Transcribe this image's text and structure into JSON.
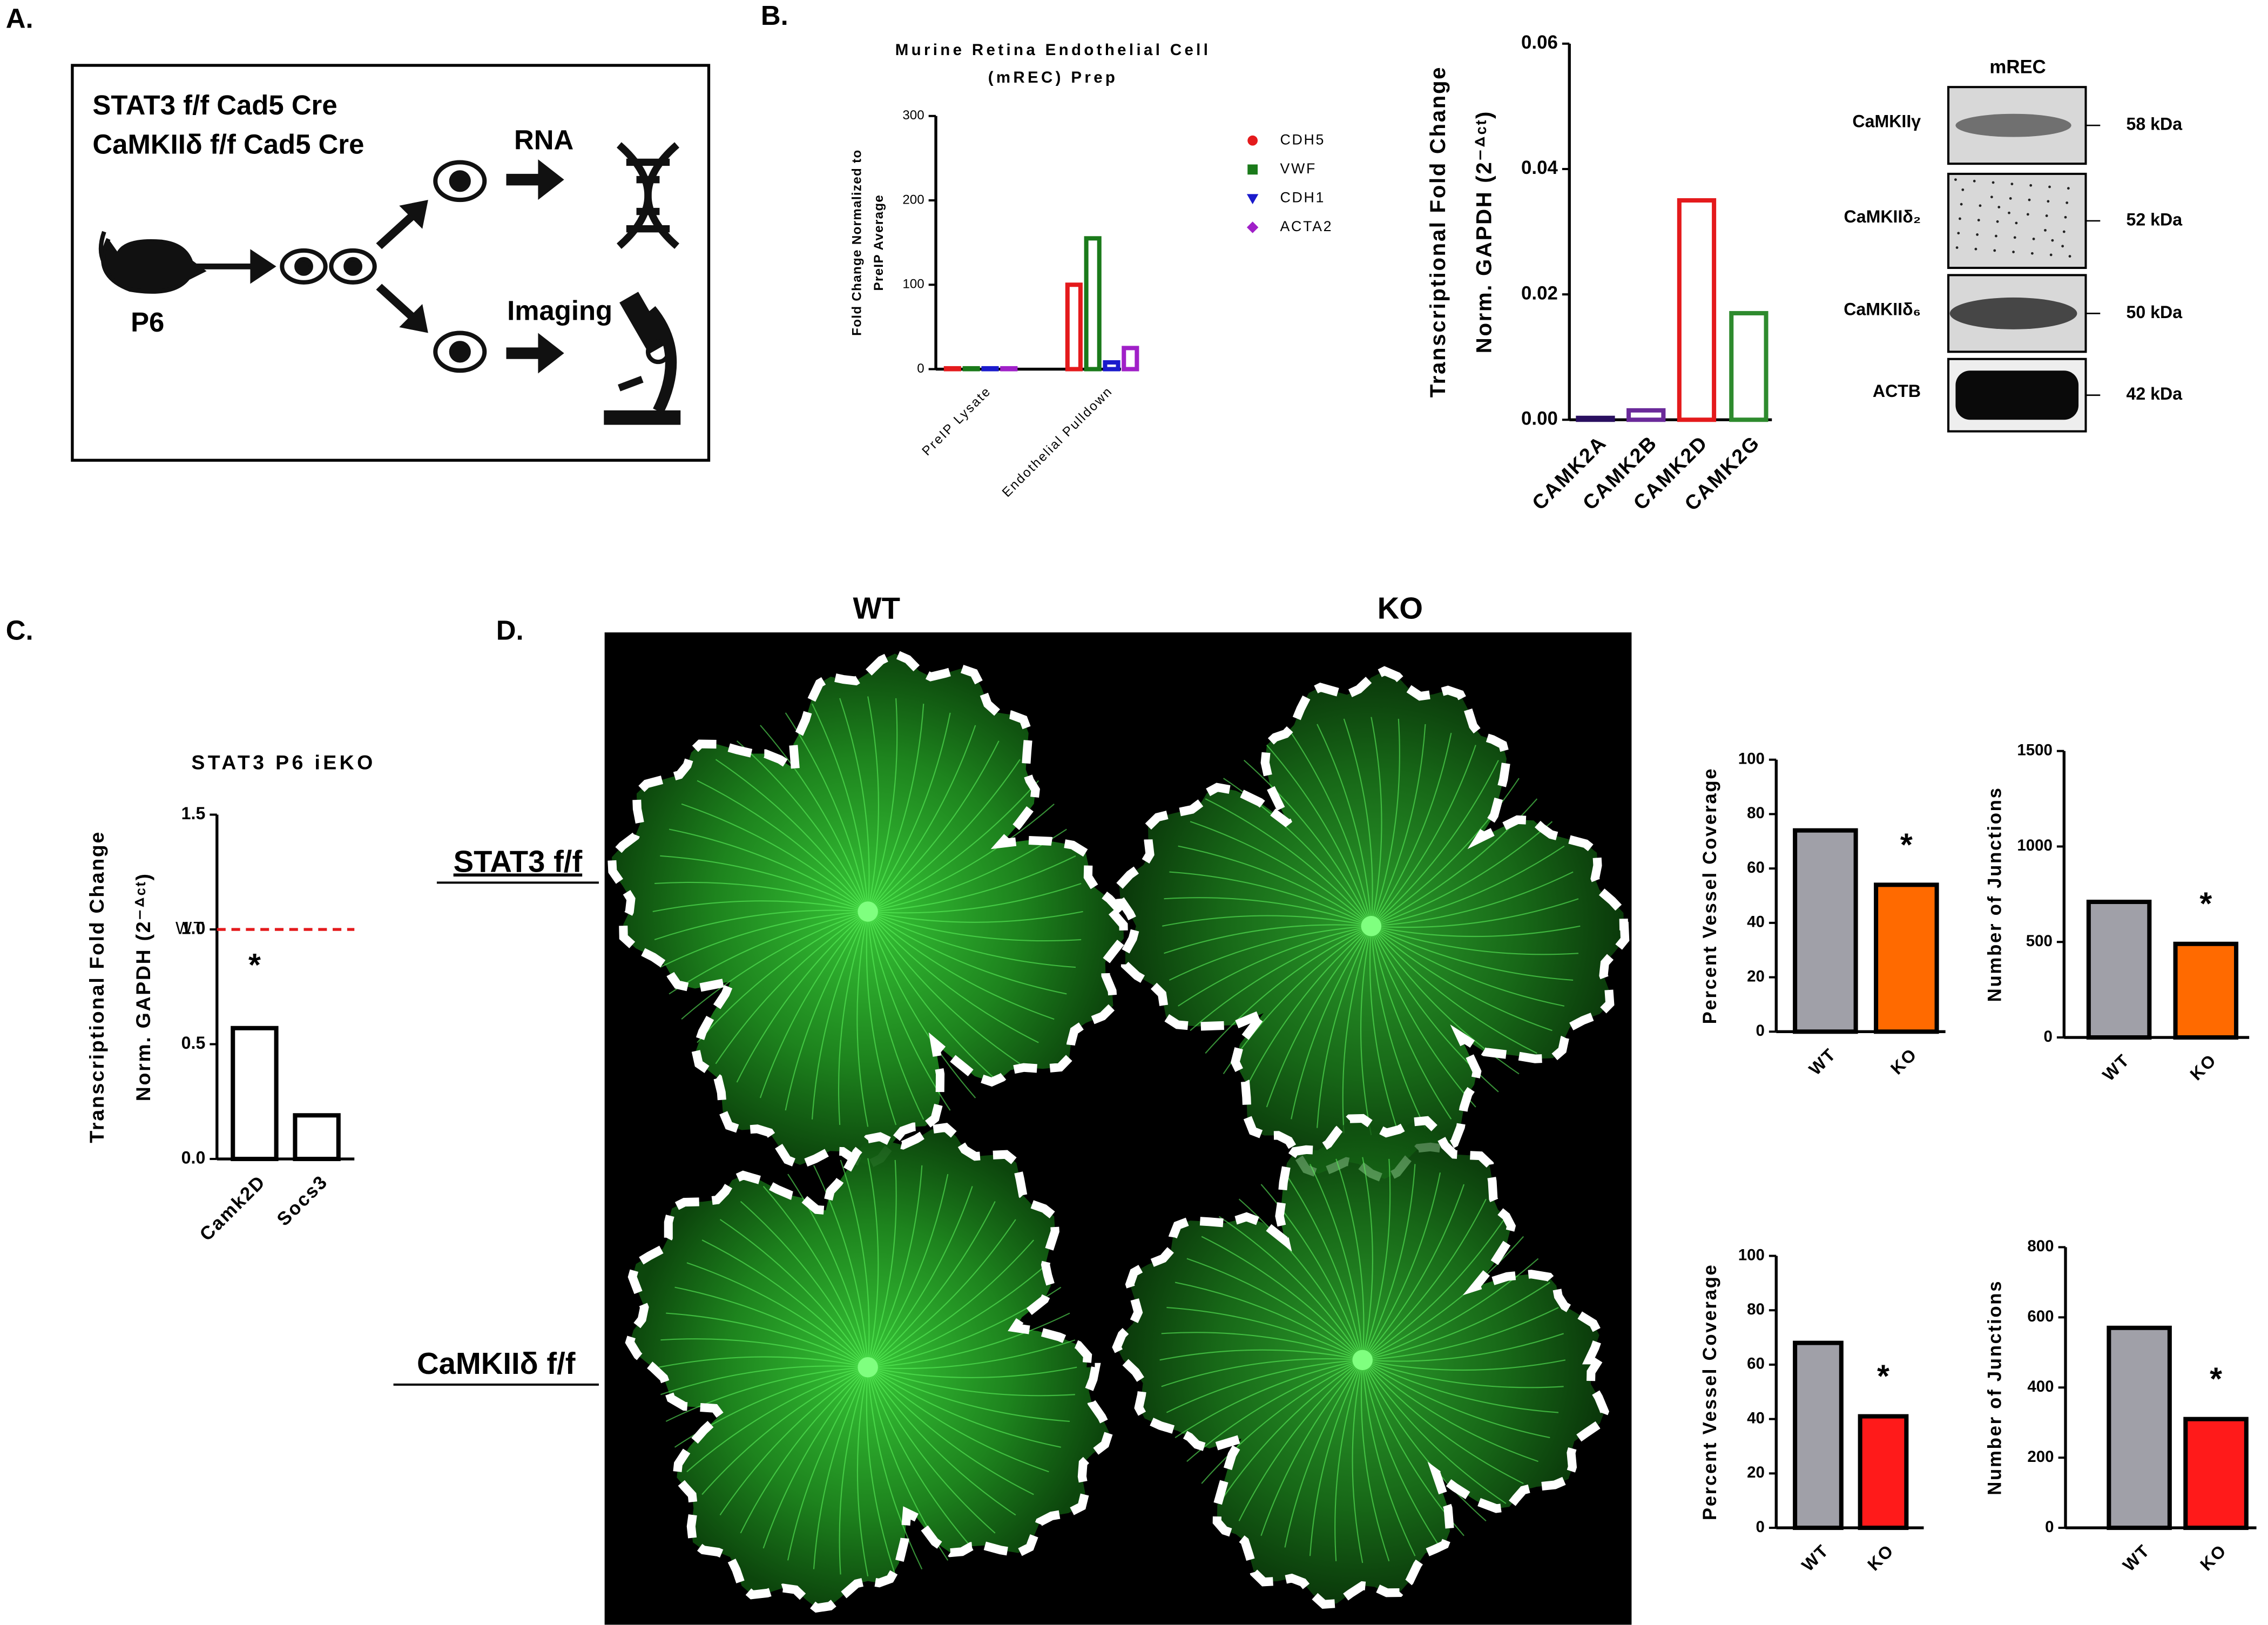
{
  "panels": {
    "a": "A.",
    "b": "B.",
    "c": "C.",
    "d": "D."
  },
  "schematic": {
    "genotypes": [
      "STAT3 f/f Cad5 Cre",
      "CaMKIIδ f/f Cad5 Cre"
    ],
    "age": "P6",
    "outputs": [
      "RNA",
      "Imaging"
    ]
  },
  "blot": {
    "title": "mREC",
    "rows": [
      {
        "label": "CaMKIIγ",
        "size": "58 kDa"
      },
      {
        "label": "CaMKIIδ₂",
        "size": "52 kDa"
      },
      {
        "label": "CaMKIIδ₆",
        "size": "50 kDa"
      },
      {
        "label": "ACTB",
        "size": "42 kDa"
      }
    ]
  },
  "retina": {
    "columns": [
      "WT",
      "KO"
    ],
    "rows": [
      "STAT3 f/f",
      "CaMKIIδ f/f"
    ]
  },
  "chart_data": [
    {
      "type": "grouped_bar",
      "title": [
        "Murine Retina Endothelial Cell",
        "(mREC) Prep"
      ],
      "ylabel": [
        "Fold Change Normalized to",
        "PreIP Average"
      ],
      "categories": [
        "PreIP Lysate",
        "Endothelial Pulldown"
      ],
      "series": [
        {
          "name": "CDH5",
          "color": "#e41a1c",
          "values": [
            1,
            100
          ]
        },
        {
          "name": "VWF",
          "color": "#1a7a1a",
          "values": [
            1,
            155
          ]
        },
        {
          "name": "CDH1",
          "color": "#1a1acc",
          "values": [
            1,
            8
          ]
        },
        {
          "name": "ACTA2",
          "color": "#a020c8",
          "values": [
            1,
            25
          ]
        }
      ],
      "ylim": [
        0,
        300
      ],
      "yticks": [
        0,
        100,
        200,
        300
      ],
      "bar_style": "hollow",
      "legend": "right"
    },
    {
      "type": "bar",
      "ylabel": [
        "Transcriptional Fold Change",
        "Norm. GAPDH (2⁻ᐞᶜᵗ)"
      ],
      "categories": [
        "CAMK2A",
        "CAMK2B",
        "CAMK2D",
        "CAMK2G"
      ],
      "values": [
        0.0003,
        0.0015,
        0.035,
        0.017
      ],
      "colors": [
        "#2a1060",
        "#6a2a9a",
        "#e41a1c",
        "#2e8b2e"
      ],
      "ylim": [
        0,
        0.06
      ],
      "yticks": [
        {
          "value": 0,
          "label": "0.00"
        },
        {
          "value": 0.02,
          "label": "0.02"
        },
        {
          "value": 0.04,
          "label": "0.04"
        },
        {
          "value": 0.06,
          "label": "0.06"
        }
      ],
      "bar_style": "hollow"
    },
    {
      "type": "bar",
      "title": "STAT3 P6 iEKO",
      "ylabel": [
        "Transcriptional Fold Change",
        "Norm. GAPDH (2⁻ᐞᶜᵗ)"
      ],
      "categories": [
        "Camk2D",
        "Socs3"
      ],
      "values": [
        0.57,
        0.19
      ],
      "colors": [
        "#000000",
        "#000000"
      ],
      "ylim": [
        0,
        1.5
      ],
      "yticks": [
        {
          "value": 0,
          "label": "0.0"
        },
        {
          "value": 0.5,
          "label": "0.5"
        },
        {
          "value": 1,
          "label": "1.0"
        },
        {
          "value": 1.5,
          "label": "1.5"
        }
      ],
      "reference": {
        "value": 1,
        "label": "WT",
        "color": "#e41a1c"
      },
      "annotations": [
        {
          "index": 0,
          "text": "*"
        }
      ],
      "bar_style": "hollow"
    },
    {
      "type": "bar",
      "ylabel": [
        "Percent Vessel Coverage"
      ],
      "categories": [
        "WT",
        "KO"
      ],
      "values": [
        74,
        54
      ],
      "colors": [
        "#a0a0a8",
        "#ff6a00"
      ],
      "ylim": [
        0,
        100
      ],
      "yticks": [
        0,
        20,
        40,
        60,
        80,
        100
      ],
      "annotations": [
        {
          "index": 1,
          "text": "*"
        }
      ],
      "bar_style": "filled"
    },
    {
      "type": "bar",
      "ylabel": [
        "Number of Junctions"
      ],
      "categories": [
        "WT",
        "KO"
      ],
      "values": [
        710,
        490
      ],
      "colors": [
        "#a0a0a8",
        "#ff6a00"
      ],
      "ylim": [
        0,
        1500
      ],
      "yticks": [
        0,
        500,
        1000,
        1500
      ],
      "annotations": [
        {
          "index": 1,
          "text": "*"
        }
      ],
      "bar_style": "filled"
    },
    {
      "type": "bar",
      "ylabel": [
        "Percent Vessel Coverage"
      ],
      "categories": [
        "WT",
        "KO"
      ],
      "values": [
        68,
        41
      ],
      "colors": [
        "#a0a0a8",
        "#ff1a1a"
      ],
      "ylim": [
        0,
        100
      ],
      "yticks": [
        0,
        20,
        40,
        60,
        80,
        100
      ],
      "annotations": [
        {
          "index": 1,
          "text": "*"
        }
      ],
      "bar_style": "filled"
    },
    {
      "type": "bar",
      "ylabel": [
        "Number of Junctions"
      ],
      "categories": [
        "WT",
        "KO"
      ],
      "values": [
        570,
        310
      ],
      "colors": [
        "#a0a0a8",
        "#ff1a1a"
      ],
      "ylim": [
        0,
        800
      ],
      "yticks": [
        0,
        200,
        400,
        600,
        800
      ],
      "annotations": [
        {
          "index": 1,
          "text": "*"
        }
      ],
      "bar_style": "filled"
    }
  ]
}
